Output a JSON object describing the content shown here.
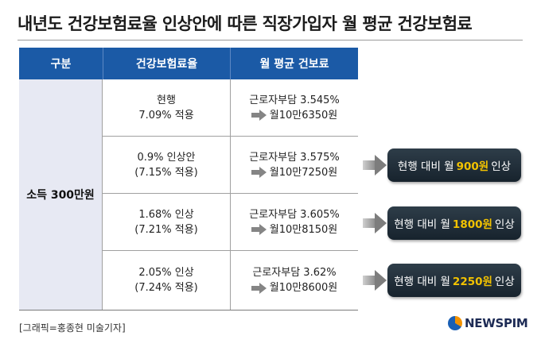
{
  "title": "내년도 건강보험료율 인상안에 따른 직장가입자 월 평균 건강보험료",
  "headers": [
    "구분",
    "건강보험료율",
    "월 평균 건보료"
  ],
  "category": "소득 300만원",
  "rows": [
    {
      "rate_line1": "현행",
      "rate_line2": "7.09% 적용",
      "burden": "근로자부담 3.545%",
      "amount": "월10만6350원"
    },
    {
      "rate_line1": "0.9% 인상안",
      "rate_line2": "(7.15% 적용)",
      "burden": "근로자부담 3.575%",
      "amount": "월10만7250원"
    },
    {
      "rate_line1": "1.68% 인상",
      "rate_line2": "(7.21% 적용)",
      "burden": "근로자부담 3.605%",
      "amount": "월10만8150원"
    },
    {
      "rate_line1": "2.05% 인상",
      "rate_line2": "(7.24% 적용)",
      "burden": "근로자부담 3.62%",
      "amount": "월10만8600원"
    }
  ],
  "badges": [
    {
      "prefix": "현행 대비 월",
      "value": "900원",
      "suffix": "인상"
    },
    {
      "prefix": "현행 대비 월",
      "value": "1800원",
      "suffix": "인상"
    },
    {
      "prefix": "현행 대비 월",
      "value": "2250원",
      "suffix": "인상"
    }
  ],
  "credit": "[그래픽=홍종현 미술기자]",
  "logo": "NEWSPIM",
  "colors": {
    "header": "#1b5aa6",
    "category_bg": "#e7e9f3",
    "badge_bg": "#1f2c37",
    "highlight": "#f2c200"
  }
}
